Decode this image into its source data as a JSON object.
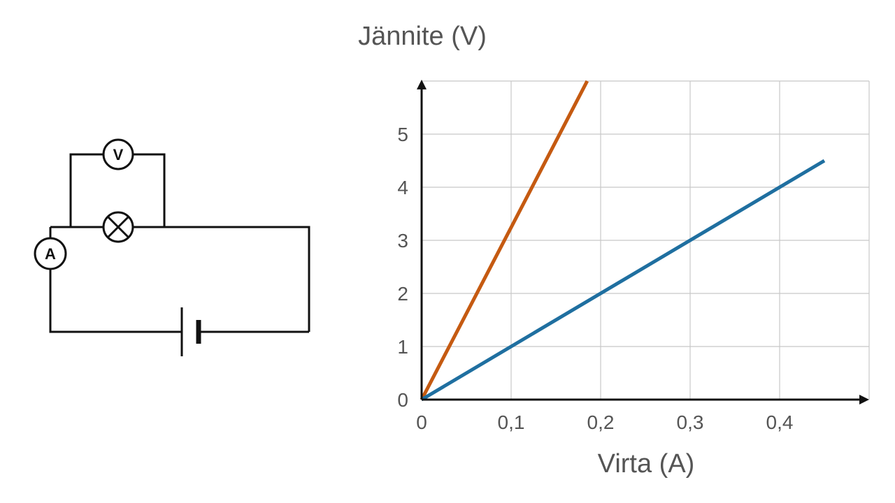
{
  "circuit": {
    "voltmeter_symbol": "V",
    "ammeter_symbol": "A"
  },
  "chart_data": {
    "type": "line",
    "xlabel": "Virta (A)",
    "ylabel": "Jännite (V)",
    "xlim": [
      0,
      0.5
    ],
    "ylim": [
      0,
      6
    ],
    "x_ticks": [
      {
        "value": 0,
        "label": "0"
      },
      {
        "value": 0.1,
        "label": "0,1"
      },
      {
        "value": 0.2,
        "label": "0,2"
      },
      {
        "value": 0.3,
        "label": "0,3"
      },
      {
        "value": 0.4,
        "label": "0,4"
      }
    ],
    "y_ticks": [
      {
        "value": 0,
        "label": "0"
      },
      {
        "value": 1,
        "label": "1"
      },
      {
        "value": 2,
        "label": "2"
      },
      {
        "value": 3,
        "label": "3"
      },
      {
        "value": 4,
        "label": "4"
      },
      {
        "value": 5,
        "label": "5"
      }
    ],
    "grid": true,
    "series": [
      {
        "color": "#c55a11",
        "x": [
          0,
          0.185
        ],
        "y": [
          0,
          6
        ]
      },
      {
        "color": "#1f6fa0",
        "x": [
          0,
          0.45
        ],
        "y": [
          0,
          4.5
        ]
      }
    ]
  }
}
